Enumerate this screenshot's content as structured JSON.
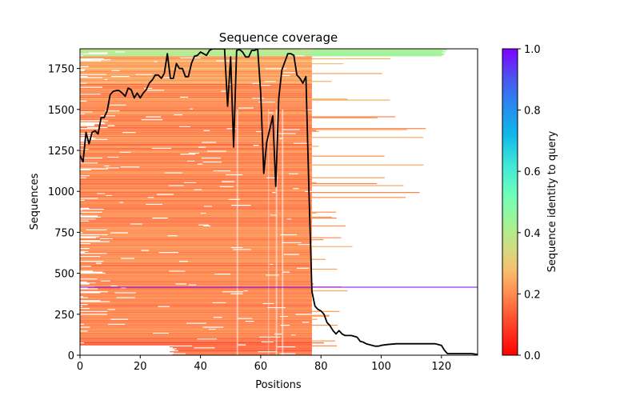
{
  "chart_data": {
    "type": "heatmap",
    "title": "Sequence coverage",
    "xlabel": "Positions",
    "ylabel": "Sequences",
    "xlim": [
      0,
      132
    ],
    "ylim": [
      0,
      1870
    ],
    "xticks": [
      0,
      20,
      40,
      60,
      80,
      100,
      120
    ],
    "yticks": [
      0,
      250,
      500,
      750,
      1000,
      1250,
      1500,
      1750
    ],
    "colorbar": {
      "label": "Sequence identity to query",
      "range": [
        0.0,
        1.0
      ],
      "ticks": [
        "0.0",
        "0.2",
        "0.4",
        "0.6",
        "0.8",
        "1.0"
      ],
      "colormap": "rainbow_r",
      "stops": [
        "#ff0000",
        "#ff8040",
        "#f6c070",
        "#a8f090",
        "#40e0d0",
        "#10a8e8",
        "#4060f0",
        "#8000ff"
      ]
    },
    "query_line": {
      "sequence_index": 415,
      "identity": 1.0,
      "color": "#7f00ff"
    },
    "bulk_region": {
      "x_start": 0,
      "x_end": 77,
      "identity_typical": 0.15
    },
    "top_band": {
      "from_sequence": 1820,
      "to_sequence": 1870,
      "identity": 0.42
    },
    "coverage": {
      "name": "coverage",
      "color": "#000000",
      "x": [
        0,
        1,
        2,
        3,
        4,
        5,
        6,
        7,
        8,
        9,
        10,
        11,
        12,
        13,
        14,
        15,
        16,
        17,
        18,
        19,
        20,
        21,
        22,
        23,
        24,
        25,
        26,
        27,
        28,
        29,
        30,
        31,
        32,
        33,
        34,
        35,
        36,
        37,
        38,
        39,
        40,
        41,
        42,
        43,
        44,
        45,
        46,
        47,
        48,
        49,
        50,
        51,
        52,
        53,
        54,
        55,
        56,
        57,
        58,
        59,
        60,
        61,
        62,
        63,
        64,
        65,
        66,
        67,
        68,
        69,
        70,
        71,
        72,
        73,
        74,
        75,
        76,
        77,
        78,
        79,
        80,
        81,
        82,
        83,
        84,
        85,
        86,
        87,
        88,
        89,
        90,
        91,
        92,
        93,
        94,
        95,
        96,
        97,
        98,
        99,
        100,
        102,
        105,
        110,
        115,
        118,
        120,
        121,
        122,
        125,
        130,
        132
      ],
      "y": [
        1220,
        1180,
        1360,
        1290,
        1360,
        1370,
        1350,
        1450,
        1450,
        1490,
        1590,
        1610,
        1615,
        1615,
        1600,
        1580,
        1630,
        1620,
        1570,
        1600,
        1570,
        1600,
        1620,
        1660,
        1680,
        1710,
        1710,
        1690,
        1720,
        1840,
        1690,
        1690,
        1780,
        1750,
        1750,
        1700,
        1700,
        1780,
        1825,
        1830,
        1850,
        1840,
        1830,
        1860,
        1870,
        1870,
        1870,
        1870,
        1870,
        1520,
        1820,
        1270,
        1860,
        1865,
        1850,
        1820,
        1820,
        1860,
        1860,
        1870,
        1600,
        1110,
        1300,
        1380,
        1460,
        1030,
        1570,
        1740,
        1790,
        1840,
        1840,
        1830,
        1710,
        1690,
        1660,
        1700,
        1000,
        390,
        300,
        280,
        270,
        250,
        200,
        180,
        150,
        130,
        150,
        130,
        120,
        120,
        120,
        115,
        110,
        85,
        80,
        70,
        65,
        60,
        55,
        55,
        60,
        65,
        70,
        70,
        70,
        70,
        60,
        30,
        10,
        10,
        10,
        5
      ]
    }
  }
}
